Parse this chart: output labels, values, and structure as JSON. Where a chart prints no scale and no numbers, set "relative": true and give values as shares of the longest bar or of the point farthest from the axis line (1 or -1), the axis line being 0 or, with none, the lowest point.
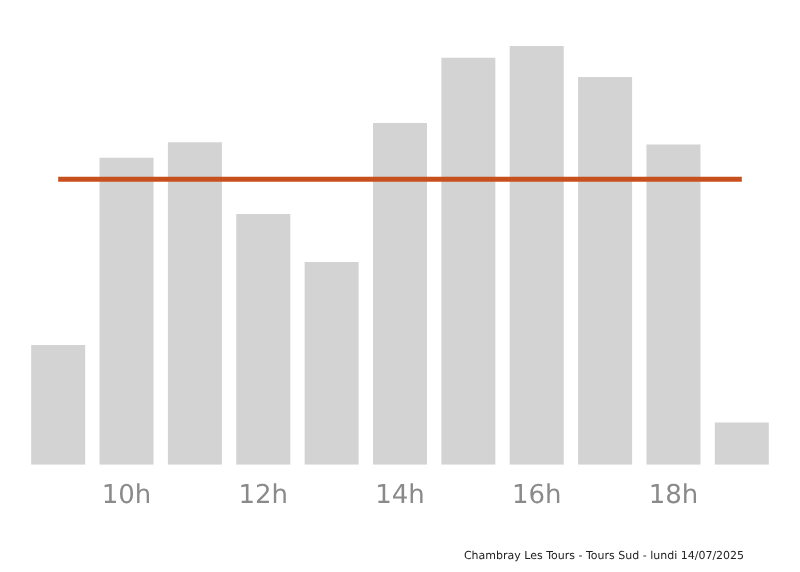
{
  "chart_data": {
    "type": "bar",
    "relative": true,
    "categories": [
      null,
      "10h",
      null,
      "12h",
      null,
      "14h",
      null,
      "16h",
      null,
      "18h",
      null
    ],
    "values": [
      0.286,
      0.733,
      0.77,
      0.599,
      0.484,
      0.816,
      0.972,
      1,
      0.926,
      0.765,
      0.101
    ],
    "color": "#d3d3d3",
    "ref_lines": [
      {
        "axis": "y",
        "value": 0.682,
        "color": "#c8501e"
      }
    ],
    "annotations": [
      "Chambray Les Tours - Tours Sud - lundi 14/07/2025"
    ],
    "grid": false,
    "legend": false
  }
}
